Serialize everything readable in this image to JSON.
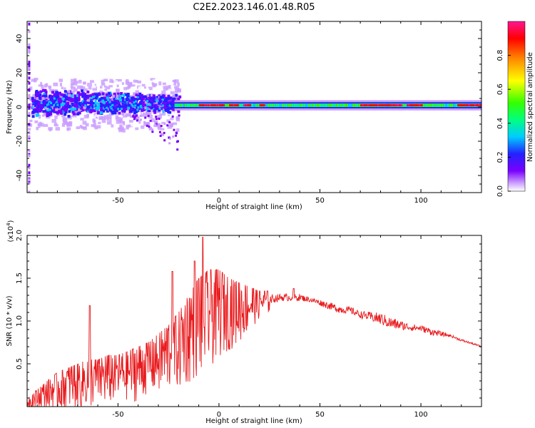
{
  "page_title": "C2E2.2023.146.01.48.R05",
  "chart_data": [
    {
      "type": "heatmap",
      "xlabel": "Height of straight line (km)",
      "ylabel": "Frequency (Hz)",
      "xlim": [
        -95,
        130
      ],
      "ylim": [
        -50,
        50
      ],
      "xticks": [
        -50,
        0,
        50,
        100
      ],
      "yticks": [
        -40,
        -20,
        0,
        20,
        40
      ],
      "colorbar": {
        "label": "Normalized spectral amplitude",
        "range": [
          0,
          1
        ],
        "ticks": [
          0.0,
          0.2,
          0.4,
          0.6,
          0.8
        ],
        "tick_labels": [
          "0.0",
          "0.2",
          "0.4",
          "0.6",
          "0.8"
        ],
        "colormap": [
          "#ffffff",
          "#c99cff",
          "#7a00ff",
          "#2222ff",
          "#00ccff",
          "#00ff80",
          "#33ff00",
          "#ffff00",
          "#ff8800",
          "#ff0000",
          "#ff1493"
        ]
      },
      "description_of_bands": [
        {
          "x_range": [
            -95,
            -20
          ],
          "freq_center": 2,
          "freq_halfwidth": 10,
          "amplitude": 0.3
        },
        {
          "x_range": [
            -20,
            130
          ],
          "freq_center": 1,
          "freq_halfwidth": 2,
          "amplitude": 0.5
        }
      ],
      "grid": false
    },
    {
      "type": "line",
      "xlabel": "Height of straight line (km)",
      "ylabel": "SNR (10 * v/v)",
      "y_multiplier_label": "(x10",
      "y_multiplier_exp": "4",
      "y_multiplier_close": ")",
      "xlim": [
        -95,
        130
      ],
      "ylim": [
        0,
        2.0
      ],
      "xticks": [
        -50,
        0,
        50,
        100
      ],
      "yticks": [
        0.5,
        1.0,
        1.5,
        2.0
      ],
      "ytick_labels": [
        "0.5",
        "1.0",
        "1.5",
        "2.0"
      ],
      "series": [
        {
          "color": "#e8191c",
          "x": [
            -95,
            -90,
            -85,
            -80,
            -75,
            -70,
            -65,
            -60,
            -55,
            -50,
            -45,
            -40,
            -35,
            -30,
            -25,
            -20,
            -15,
            -10,
            -5,
            0,
            5,
            10,
            15,
            20,
            25,
            30,
            35,
            40,
            45,
            50,
            55,
            60,
            65,
            70,
            75,
            80,
            85,
            90,
            95,
            100,
            105,
            110,
            115,
            120,
            125,
            130
          ],
          "envelope_low": [
            0.0,
            0.02,
            0.05,
            0.05,
            0.08,
            0.1,
            0.1,
            0.15,
            0.15,
            0.2,
            0.2,
            0.2,
            0.3,
            0.3,
            0.35,
            0.4,
            0.5,
            0.6,
            0.7,
            0.8,
            0.85,
            0.9,
            1.0,
            1.1,
            1.15,
            1.2,
            1.2,
            1.2,
            1.2,
            1.15,
            1.1,
            1.05,
            1.05,
            1.0,
            0.95,
            0.9,
            0.85,
            0.85,
            0.85,
            0.85,
            0.8,
            0.8,
            0.8,
            0.75,
            0.72,
            0.68
          ],
          "envelope_high": [
            0.1,
            0.2,
            0.3,
            0.4,
            0.45,
            0.5,
            0.55,
            0.55,
            0.6,
            0.6,
            0.65,
            0.7,
            0.75,
            0.85,
            0.95,
            1.1,
            1.3,
            1.5,
            1.6,
            1.6,
            1.5,
            1.45,
            1.4,
            1.35,
            1.35,
            1.35,
            1.35,
            1.35,
            1.3,
            1.28,
            1.25,
            1.22,
            1.2,
            1.15,
            1.15,
            1.15,
            1.1,
            1.05,
            1.0,
            0.98,
            0.95,
            0.9,
            0.85,
            0.8,
            0.76,
            0.72
          ],
          "peaks": [
            {
              "x": -64,
              "y": 1.18
            },
            {
              "x": -23,
              "y": 1.58
            },
            {
              "x": -12,
              "y": 1.7
            },
            {
              "x": -8,
              "y": 1.98
            },
            {
              "x": 37,
              "y": 1.38
            }
          ]
        }
      ]
    }
  ]
}
